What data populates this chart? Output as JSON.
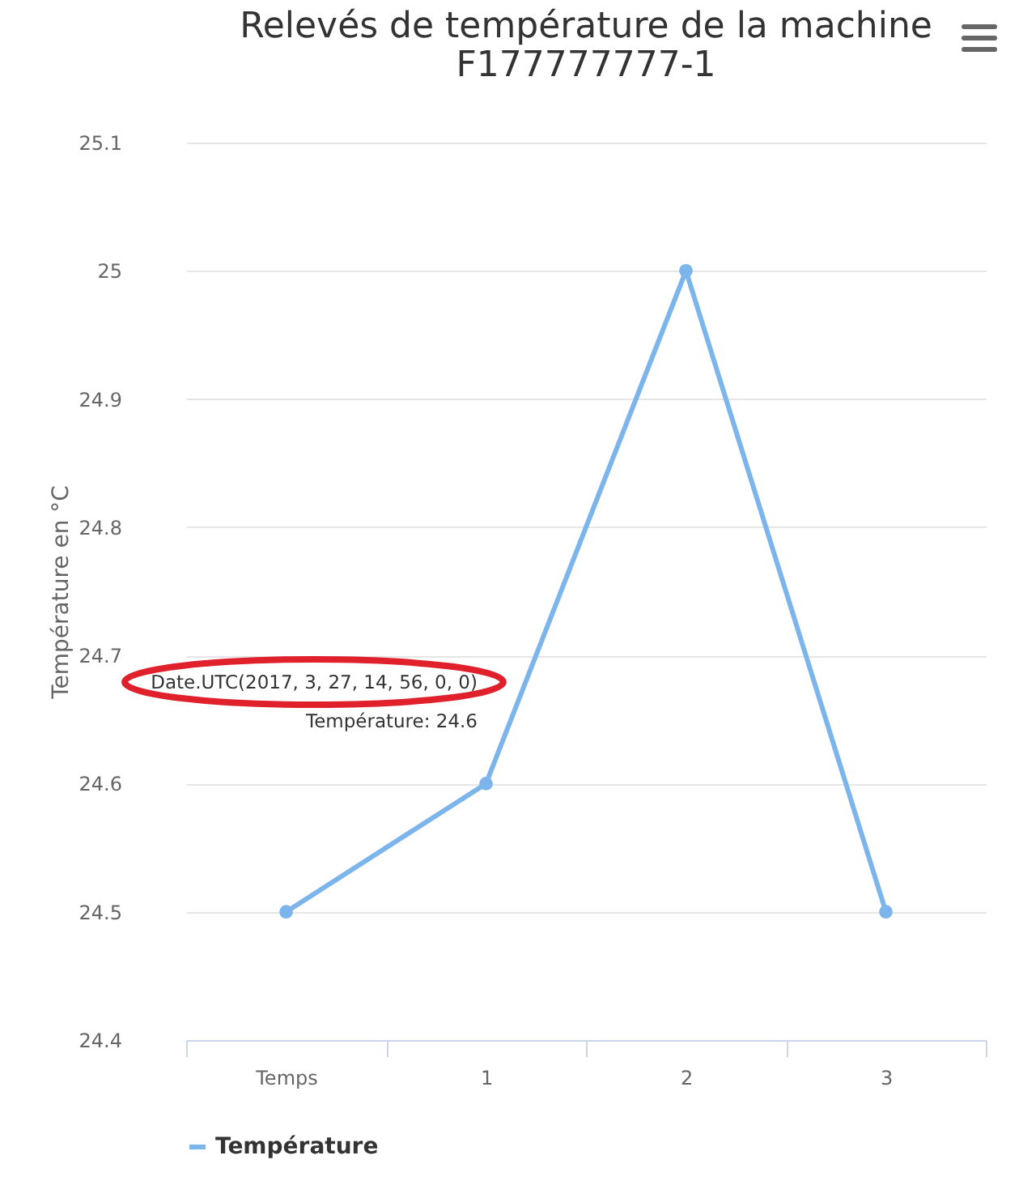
{
  "chart_data": {
    "type": "line",
    "title": "Relevés de température de la machine F177777777-1",
    "ylabel": "Température en °C",
    "categories": [
      "Temps",
      "1",
      "2",
      "3"
    ],
    "series": [
      {
        "name": "Température",
        "color": "#7cb5ec",
        "values": [
          24.5,
          24.6,
          25,
          24.5
        ]
      }
    ],
    "ylim": [
      24.4,
      25.1
    ],
    "yticks": [
      24.4,
      24.5,
      24.6,
      24.7,
      24.8,
      24.9,
      25,
      25.1
    ],
    "grid": "y",
    "legend": "bottom",
    "marker": "circle",
    "line_style": "solid",
    "annotations": [
      "Date.UTC(2017, 3, 27, 14, 56, 0, 0)",
      "Température: 24.6"
    ]
  }
}
